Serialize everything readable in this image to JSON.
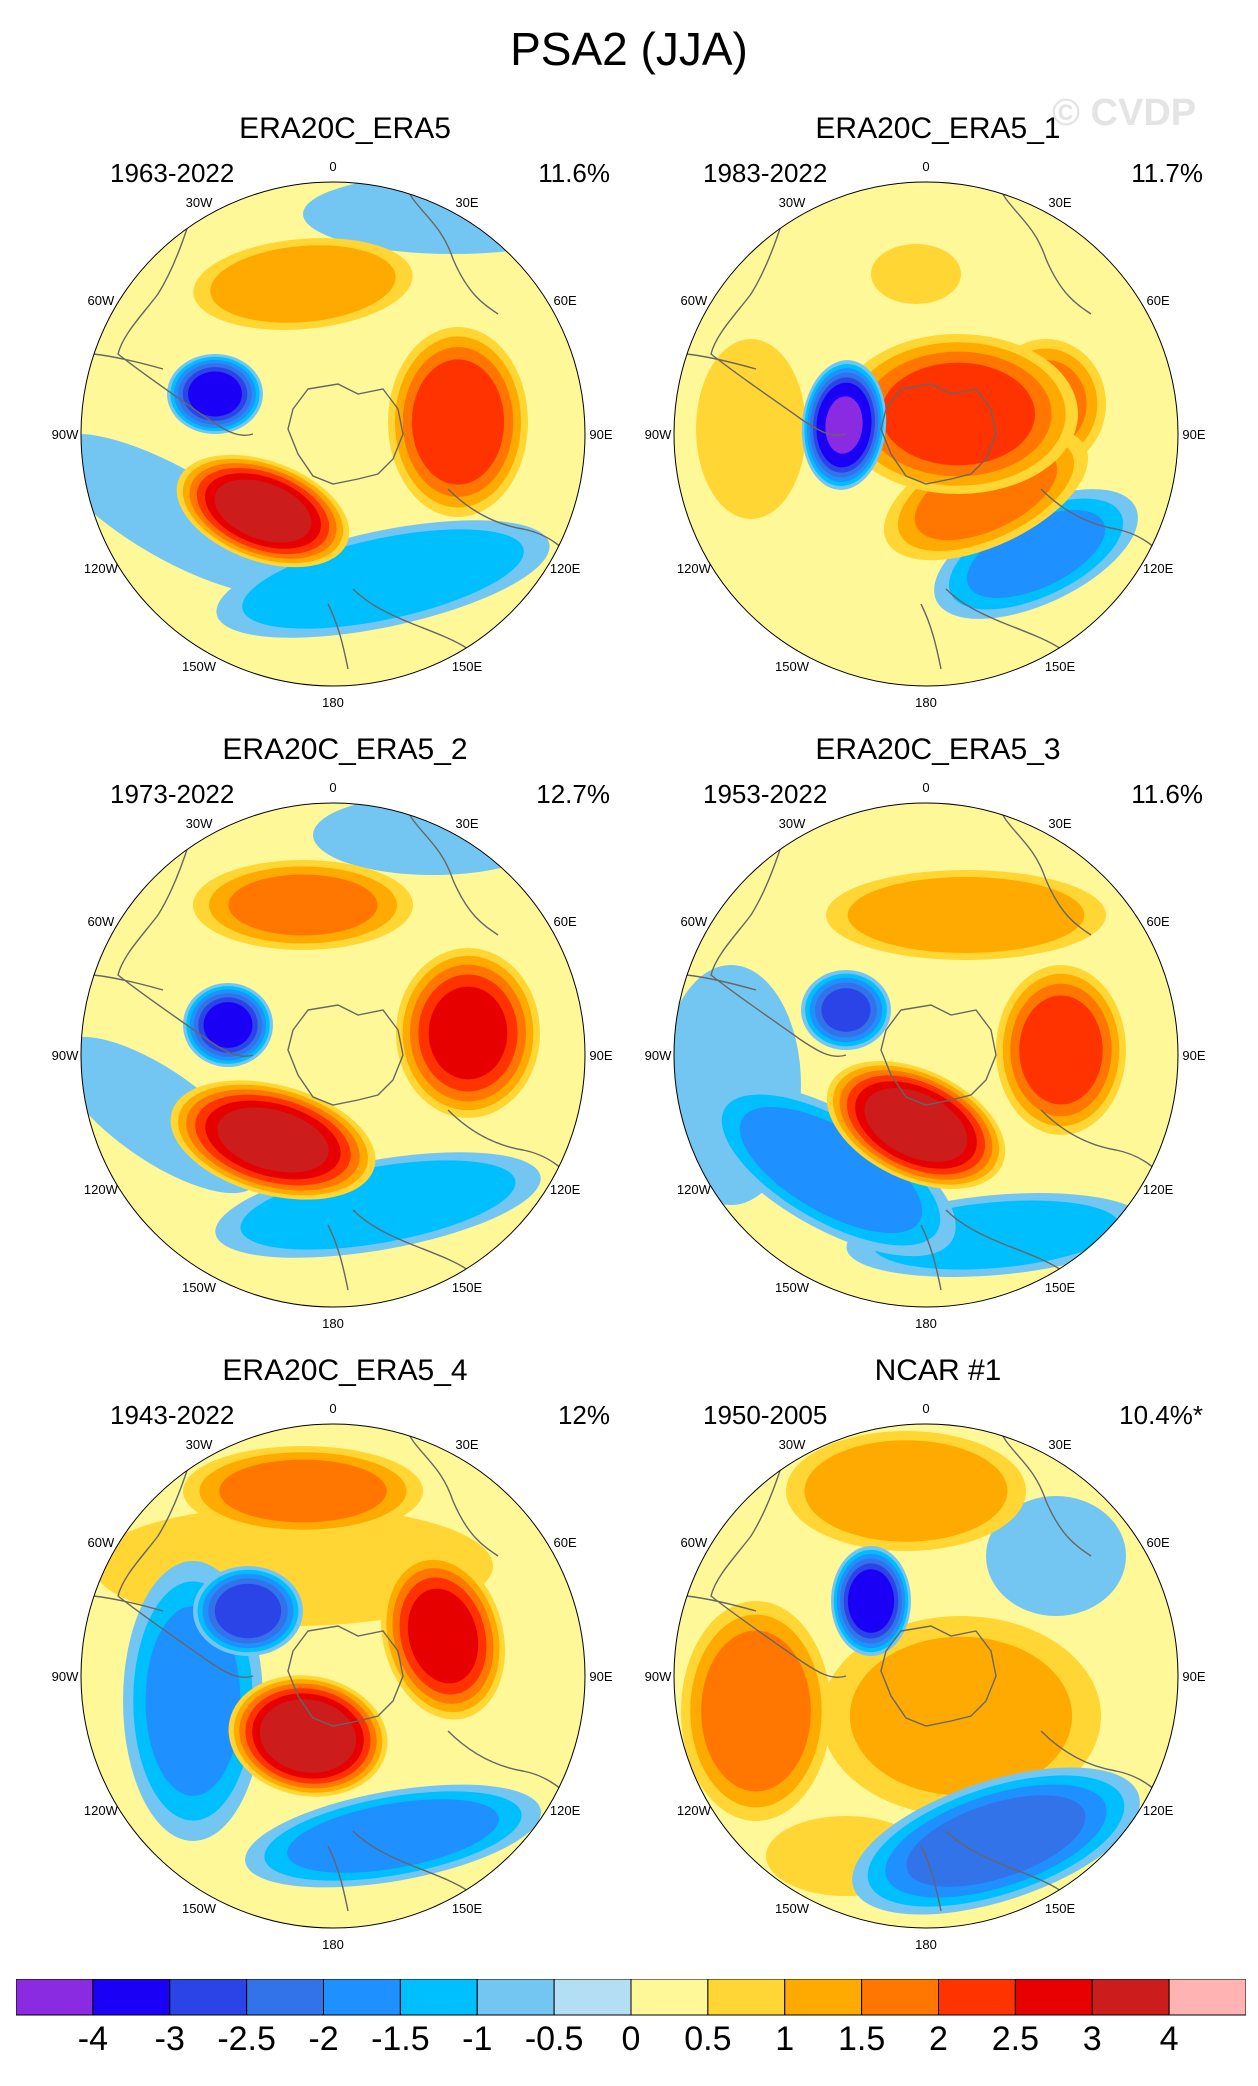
{
  "figure": {
    "title": "PSA2 (JJA)",
    "watermark": "© CVDP"
  },
  "lon_labels": [
    "0",
    "30E",
    "60E",
    "90E",
    "120E",
    "150E",
    "180",
    "150W",
    "120W",
    "90W",
    "60W",
    "30W"
  ],
  "colors": {
    "levels": [
      "#8a2be2",
      "#1a00f5",
      "#2b44e8",
      "#3373ea",
      "#1e90ff",
      "#00bfff",
      "#74c6f2",
      "#b4def4",
      "#fff899",
      "#ffd633",
      "#ffaa00",
      "#ff7700",
      "#ff3300",
      "#e60000",
      "#cc1c1c",
      "#ffb3b3"
    ],
    "land_outline": "#666666",
    "circle_border": "#000000"
  },
  "chart_data": {
    "type": "heatmap",
    "title": "PSA2 (JJA)",
    "colorbar_ticks": [
      "-4",
      "-3",
      "-2.5",
      "-2",
      "-1.5",
      "-1",
      "-0.5",
      "0",
      "0.5",
      "1",
      "1.5",
      "2",
      "2.5",
      "3",
      "4"
    ],
    "panels": [
      {
        "name": "ERA20C_ERA5",
        "years": "1963-2022",
        "pct": "11.6%"
      },
      {
        "name": "ERA20C_ERA5_1",
        "years": "1983-2022",
        "pct": "11.7%"
      },
      {
        "name": "ERA20C_ERA5_2",
        "years": "1973-2022",
        "pct": "12.7%"
      },
      {
        "name": "ERA20C_ERA5_3",
        "years": "1953-2022",
        "pct": "11.6%"
      },
      {
        "name": "ERA20C_ERA5_4",
        "years": "1943-2022",
        "pct": "12%"
      },
      {
        "name": "NCAR #1",
        "years": "1950-2005",
        "pct": "10.4%*"
      }
    ]
  }
}
